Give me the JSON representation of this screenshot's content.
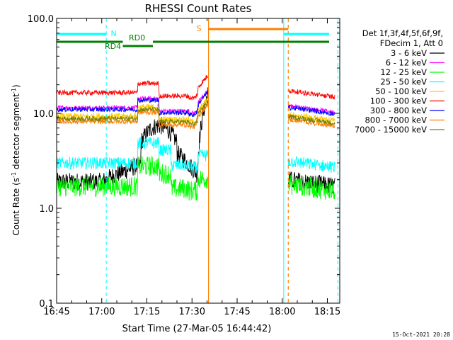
{
  "chart_data": {
    "type": "line",
    "title": "RHESSI Count Rates",
    "xlabel": "Start Time (27-Mar-05 16:44:42)",
    "ylabel_main": "Count Rate (s",
    "ylabel_sup1": "-1",
    "ylabel_mid": " detector segment",
    "ylabel_sup2": "-1",
    "ylabel_end": ")",
    "yscale": "log",
    "xlim_minutes": [
      0,
      96
    ],
    "ylim": [
      0.1,
      100.0
    ],
    "x_ticks": [
      {
        "label": "16:45",
        "min": 0
      },
      {
        "label": "17:00",
        "min": 15
      },
      {
        "label": "17:15",
        "min": 30
      },
      {
        "label": "17:30",
        "min": 45
      },
      {
        "label": "17:45",
        "min": 60
      },
      {
        "label": "18:00",
        "min": 75
      },
      {
        "label": "18:15",
        "min": 90
      }
    ],
    "y_ticks": [
      {
        "label": "0.1",
        "value": 0.1
      },
      {
        "label": "1.0",
        "value": 1.0
      },
      {
        "label": "10.0",
        "value": 10.0
      },
      {
        "label": "100.0",
        "value": 100.0
      }
    ],
    "legend_header": [
      "Det 1f,3f,4f,5f,6f,9f,",
      "FDecim 1, Att 0"
    ],
    "legend_placement": "right",
    "series": [
      {
        "name": "3 - 6 keV",
        "color": "#000000",
        "base": 1.9
      },
      {
        "name": "6 - 12 keV",
        "color": "#ff00ff",
        "base": 11.5
      },
      {
        "name": "12 - 25 keV",
        "color": "#00ff00",
        "base": 1.7
      },
      {
        "name": "25 - 50 keV",
        "color": "#00ffff",
        "base": 3.0
      },
      {
        "name": "50 - 100 keV",
        "color": "#ffcc00",
        "base": 9.3
      },
      {
        "name": "100 - 300 keV",
        "color": "#ff0000",
        "base": 16.5
      },
      {
        "name": "300 - 800 keV",
        "color": "#0000ff",
        "base": 11.0
      },
      {
        "name": "800 - 7000 keV",
        "color": "#ff8000",
        "base": 8.2
      },
      {
        "name": "7000 - 15000 keV",
        "color": "#808000",
        "base": 8.8
      }
    ],
    "segments_minutes": [
      [
        0,
        50.5
      ],
      [
        77,
        92.5
      ]
    ],
    "night_label": "N",
    "saa_label": "S",
    "decim_labels": [
      "RD0",
      "RD4"
    ],
    "vlines_cyan_solid": [
      0,
      75.5
    ],
    "vlines_cyan_dashed": [
      16.5,
      93.5
    ],
    "vlines_orange_solid": [
      50.5
    ],
    "vlines_orange_dashed": [
      77
    ]
  },
  "footer": {
    "timestamp": "15-Oct-2021 20:28"
  }
}
